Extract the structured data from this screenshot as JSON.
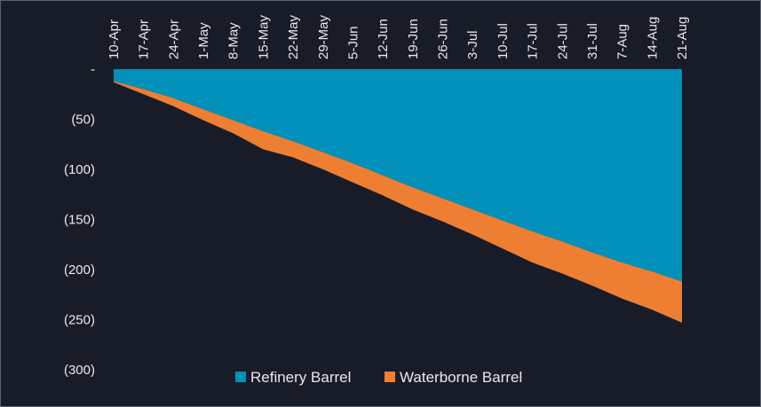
{
  "colors": {
    "background": "#181c29",
    "refinery": "#0191bb",
    "waterborne": "#ee7f32",
    "text": "#e6e8ee"
  },
  "chart_data": {
    "type": "area",
    "stacked": true,
    "title": "",
    "xlabel": "",
    "ylabel": "",
    "categories": [
      "10-Apr",
      "17-Apr",
      "24-Apr",
      "1-May",
      "8-May",
      "15-May",
      "22-May",
      "29-May",
      "5-Jun",
      "12-Jun",
      "19-Jun",
      "26-Jun",
      "3-Jul",
      "10-Jul",
      "17-Jul",
      "24-Jul",
      "31-Jul",
      "7-Aug",
      "14-Aug",
      "21-Aug"
    ],
    "y_tick_labels": [
      "-",
      "(50)",
      "(100)",
      "(150)",
      "(200)",
      "(250)",
      "(300)"
    ],
    "ylim": [
      -300,
      0
    ],
    "grid": false,
    "legend_position": "bottom",
    "series": [
      {
        "name": "Refinery Barrel",
        "color": "#0191bb",
        "values": [
          -12,
          -20,
          -29,
          -40,
          -51,
          -62,
          -72,
          -83,
          -94,
          -106,
          -118,
          -129,
          -140,
          -151,
          -162,
          -172,
          -183,
          -193,
          -202,
          -212
        ]
      },
      {
        "name": "Waterborne Barrel",
        "color": "#ee7f32",
        "values": [
          -1,
          -5,
          -8,
          -11,
          -13,
          -18,
          -16,
          -17,
          -19,
          -20,
          -22,
          -23,
          -25,
          -28,
          -31,
          -32,
          -33,
          -36,
          -38,
          -41
        ]
      }
    ]
  }
}
